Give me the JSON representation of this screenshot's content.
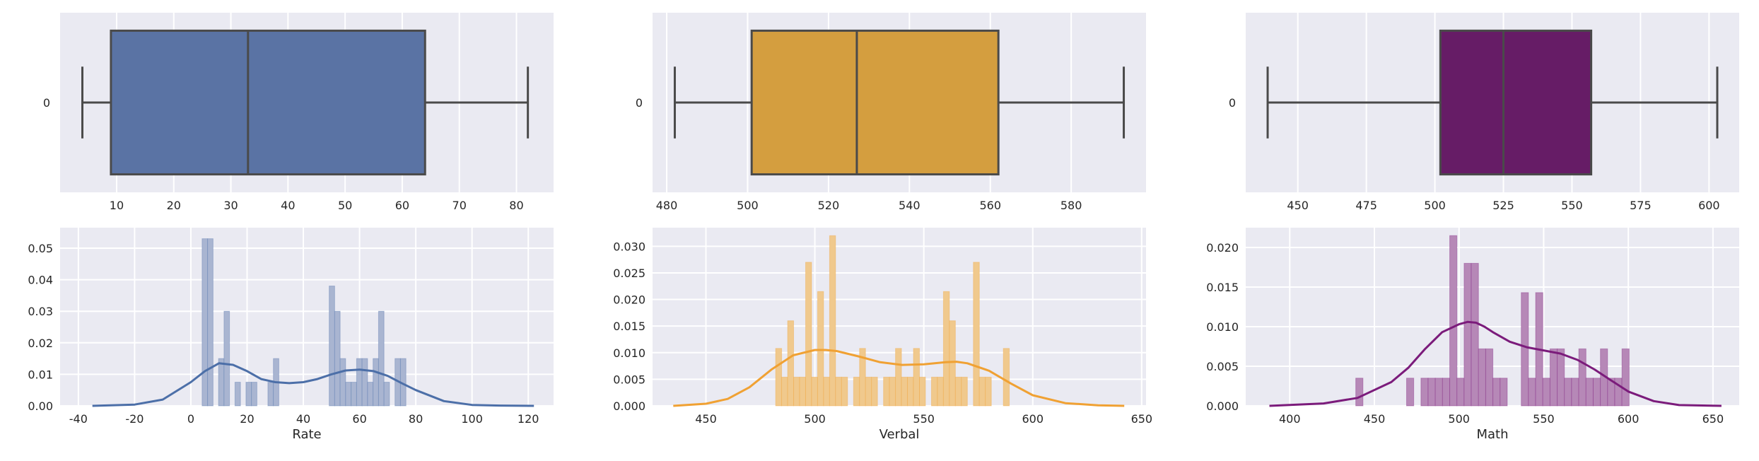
{
  "chart_data": [
    {
      "type": "boxplot",
      "variable": "Rate",
      "color": "#5a73a4",
      "orient": "horizontal",
      "category_label": "0",
      "stats": {
        "min": 4,
        "q1": 9,
        "median": 33,
        "q3": 64,
        "max": 82
      },
      "xlim": [
        0.1,
        86.5
      ],
      "xticks": [
        10,
        20,
        30,
        40,
        50,
        60,
        70,
        80
      ],
      "grid": true
    },
    {
      "type": "boxplot",
      "variable": "Verbal",
      "color": "#d49e3f",
      "orient": "horizontal",
      "category_label": "0",
      "stats": {
        "min": 482,
        "q1": 501,
        "median": 527,
        "q3": 562,
        "max": 593
      },
      "xlim": [
        476.5,
        598.5
      ],
      "xticks": [
        480,
        500,
        520,
        540,
        560,
        580
      ],
      "grid": true
    },
    {
      "type": "boxplot",
      "variable": "Math",
      "color": "#661c66",
      "orient": "horizontal",
      "category_label": "0",
      "stats": {
        "min": 439,
        "q1": 502,
        "median": 525,
        "q3": 557,
        "max": 603
      },
      "xlim": [
        431,
        611
      ],
      "xticks": [
        450,
        475,
        500,
        525,
        550,
        575,
        600
      ],
      "grid": true
    },
    {
      "type": "histogram",
      "variable": "Rate",
      "xlabel": "Rate",
      "bar_color": "#a9b5d1",
      "kde_color": "#4c6fa8",
      "bins": [
        [
          4,
          5.95,
          0.053
        ],
        [
          5.95,
          7.9,
          0.053
        ],
        [
          7.9,
          9.85,
          0
        ],
        [
          9.85,
          11.8,
          0.015
        ],
        [
          11.8,
          13.75,
          0.03
        ],
        [
          13.75,
          15.7,
          0
        ],
        [
          15.7,
          17.65,
          0.0075
        ],
        [
          17.65,
          19.6,
          0
        ],
        [
          19.6,
          21.55,
          0.0075
        ],
        [
          21.55,
          23.5,
          0.0075
        ],
        [
          23.5,
          25.45,
          0
        ],
        [
          25.45,
          27.4,
          0
        ],
        [
          27.4,
          29.35,
          0.0075
        ],
        [
          29.35,
          31.3,
          0.015
        ],
        [
          31.3,
          49.2,
          0
        ],
        [
          49.2,
          51.15,
          0.038
        ],
        [
          51.15,
          53.1,
          0.03
        ],
        [
          53.1,
          55.05,
          0.015
        ],
        [
          55.05,
          57,
          0.0075
        ],
        [
          57,
          58.95,
          0.0075
        ],
        [
          58.95,
          60.9,
          0.015
        ],
        [
          60.9,
          62.85,
          0.015
        ],
        [
          62.85,
          64.8,
          0.0075
        ],
        [
          64.8,
          66.75,
          0.015
        ],
        [
          66.75,
          68.7,
          0.03
        ],
        [
          68.7,
          70.65,
          0.0075
        ],
        [
          70.65,
          72.6,
          0
        ],
        [
          72.6,
          74.55,
          0.015
        ],
        [
          74.55,
          76.5,
          0.015
        ],
        [
          76.5,
          80.4,
          0
        ]
      ],
      "kde": {
        "x": [
          -35,
          -20,
          -10,
          0,
          5,
          10,
          15,
          20,
          25,
          30,
          35,
          40,
          45,
          50,
          55,
          60,
          65,
          70,
          75,
          80,
          90,
          100,
          110,
          122
        ],
        "y": [
          0,
          0.0004,
          0.002,
          0.0075,
          0.011,
          0.0135,
          0.013,
          0.011,
          0.0085,
          0.0075,
          0.0072,
          0.0075,
          0.0085,
          0.01,
          0.0112,
          0.0115,
          0.011,
          0.0095,
          0.0072,
          0.005,
          0.0015,
          0.0003,
          0.0001,
          0
        ]
      },
      "xlim": [
        -46.5,
        129
      ],
      "ylim": [
        0,
        0.0565
      ],
      "xticks": [
        -40,
        -20,
        0,
        20,
        40,
        60,
        80,
        100,
        120
      ],
      "yticks": [
        0.0,
        0.01,
        0.02,
        0.03,
        0.04,
        0.05
      ],
      "ytick_labels": [
        "0.00",
        "0.01",
        "0.02",
        "0.03",
        "0.04",
        "0.05"
      ],
      "grid": true
    },
    {
      "type": "histogram",
      "variable": "Verbal",
      "xlabel": "Verbal",
      "bar_color": "#f0c98d",
      "kde_color": "#f0a133",
      "bins": [
        [
          482,
          484.75,
          0.0108
        ],
        [
          484.75,
          487.5,
          0.0054
        ],
        [
          487.5,
          490.25,
          0.016
        ],
        [
          490.25,
          493,
          0.0054
        ],
        [
          493,
          495.75,
          0.0054
        ],
        [
          495.75,
          498.5,
          0.027
        ],
        [
          498.5,
          501.25,
          0.0054
        ],
        [
          501.25,
          504,
          0.0215
        ],
        [
          504,
          506.75,
          0.0054
        ],
        [
          506.75,
          509.5,
          0.032
        ],
        [
          509.5,
          512.25,
          0.0054
        ],
        [
          512.25,
          515,
          0.0054
        ],
        [
          517.75,
          520.5,
          0.0054
        ],
        [
          520.5,
          523.25,
          0.0108
        ],
        [
          523.25,
          526,
          0.0054
        ],
        [
          526,
          528.75,
          0.0054
        ],
        [
          531.5,
          534.25,
          0.0054
        ],
        [
          534.25,
          537,
          0.0054
        ],
        [
          537,
          539.75,
          0.0108
        ],
        [
          539.75,
          542.5,
          0.0054
        ],
        [
          542.5,
          545.25,
          0.0054
        ],
        [
          545.25,
          548,
          0.0108
        ],
        [
          548,
          550.75,
          0.0054
        ],
        [
          553.5,
          556.25,
          0.0054
        ],
        [
          556.25,
          559,
          0.0054
        ],
        [
          559,
          561.75,
          0.0215
        ],
        [
          561.75,
          564.5,
          0.016
        ],
        [
          564.5,
          567.25,
          0.0054
        ],
        [
          567.25,
          570,
          0.0054
        ],
        [
          572.75,
          575.5,
          0.027
        ],
        [
          575.5,
          578.25,
          0.0054
        ],
        [
          578.25,
          581,
          0.0054
        ],
        [
          586.5,
          589.25,
          0.0108
        ]
      ],
      "kde": {
        "x": [
          435,
          450,
          460,
          470,
          480,
          490,
          500,
          505,
          510,
          520,
          530,
          540,
          550,
          560,
          565,
          570,
          580,
          590,
          600,
          615,
          630,
          642
        ],
        "y": [
          0,
          0.0004,
          0.0013,
          0.0035,
          0.0068,
          0.0095,
          0.0105,
          0.0105,
          0.0103,
          0.0093,
          0.0082,
          0.0077,
          0.0078,
          0.0082,
          0.0083,
          0.008,
          0.0066,
          0.0042,
          0.002,
          0.0005,
          0.0001,
          0
        ]
      },
      "xlim": [
        425.5,
        652
      ],
      "ylim": [
        0,
        0.0335
      ],
      "xticks": [
        450,
        500,
        550,
        600,
        650
      ],
      "yticks": [
        0.0,
        0.005,
        0.01,
        0.015,
        0.02,
        0.025,
        0.03
      ],
      "ytick_labels": [
        "0.000",
        "0.005",
        "0.010",
        "0.015",
        "0.020",
        "0.025",
        "0.030"
      ],
      "grid": true
    },
    {
      "type": "histogram",
      "variable": "Math",
      "xlabel": "Math",
      "bar_color": "#b688b7",
      "kde_color": "#7b1b7b",
      "bins": [
        [
          439,
          443.25,
          0.0035
        ],
        [
          469,
          473.25,
          0.0035
        ],
        [
          477.5,
          481.75,
          0.0035
        ],
        [
          481.75,
          486,
          0.0035
        ],
        [
          486,
          490.25,
          0.0035
        ],
        [
          490.25,
          494.5,
          0.0035
        ],
        [
          494.5,
          498.75,
          0.0215
        ],
        [
          498.75,
          503,
          0.0035
        ],
        [
          503,
          507.25,
          0.018
        ],
        [
          507.25,
          511.5,
          0.018
        ],
        [
          511.5,
          515.75,
          0.0072
        ],
        [
          515.75,
          520,
          0.0072
        ],
        [
          520,
          524.25,
          0.0035
        ],
        [
          524.25,
          528.5,
          0.0035
        ],
        [
          536.75,
          541,
          0.0143
        ],
        [
          541,
          545.25,
          0.0035
        ],
        [
          545.25,
          549.5,
          0.0143
        ],
        [
          549.5,
          553.75,
          0.0035
        ],
        [
          553.75,
          558,
          0.0072
        ],
        [
          558,
          562.25,
          0.0072
        ],
        [
          562.25,
          566.5,
          0.0035
        ],
        [
          566.5,
          570.75,
          0.0035
        ],
        [
          570.75,
          575,
          0.0072
        ],
        [
          575,
          579.25,
          0.0035
        ],
        [
          579.25,
          583.5,
          0.0035
        ],
        [
          583.5,
          587.75,
          0.0072
        ],
        [
          587.75,
          592,
          0.0035
        ],
        [
          592,
          596.25,
          0.0035
        ],
        [
          596.25,
          600.5,
          0.0072
        ]
      ],
      "kde": {
        "x": [
          388,
          420,
          440,
          460,
          470,
          480,
          490,
          500,
          505,
          510,
          515,
          520,
          530,
          540,
          550,
          560,
          570,
          580,
          590,
          600,
          615,
          630,
          655
        ],
        "y": [
          0,
          0.0003,
          0.001,
          0.003,
          0.0048,
          0.0072,
          0.0093,
          0.0103,
          0.0106,
          0.0105,
          0.01,
          0.0093,
          0.0081,
          0.0074,
          0.007,
          0.0066,
          0.0058,
          0.0046,
          0.0032,
          0.0018,
          0.0006,
          0.0001,
          0
        ]
      },
      "xlim": [
        374,
        665.5
      ],
      "ylim": [
        0,
        0.0225
      ],
      "xticks": [
        400,
        450,
        500,
        550,
        600,
        650
      ],
      "yticks": [
        0.0,
        0.005,
        0.01,
        0.015,
        0.02
      ],
      "ytick_labels": [
        "0.000",
        "0.005",
        "0.010",
        "0.015",
        "0.020"
      ],
      "grid": true
    }
  ]
}
